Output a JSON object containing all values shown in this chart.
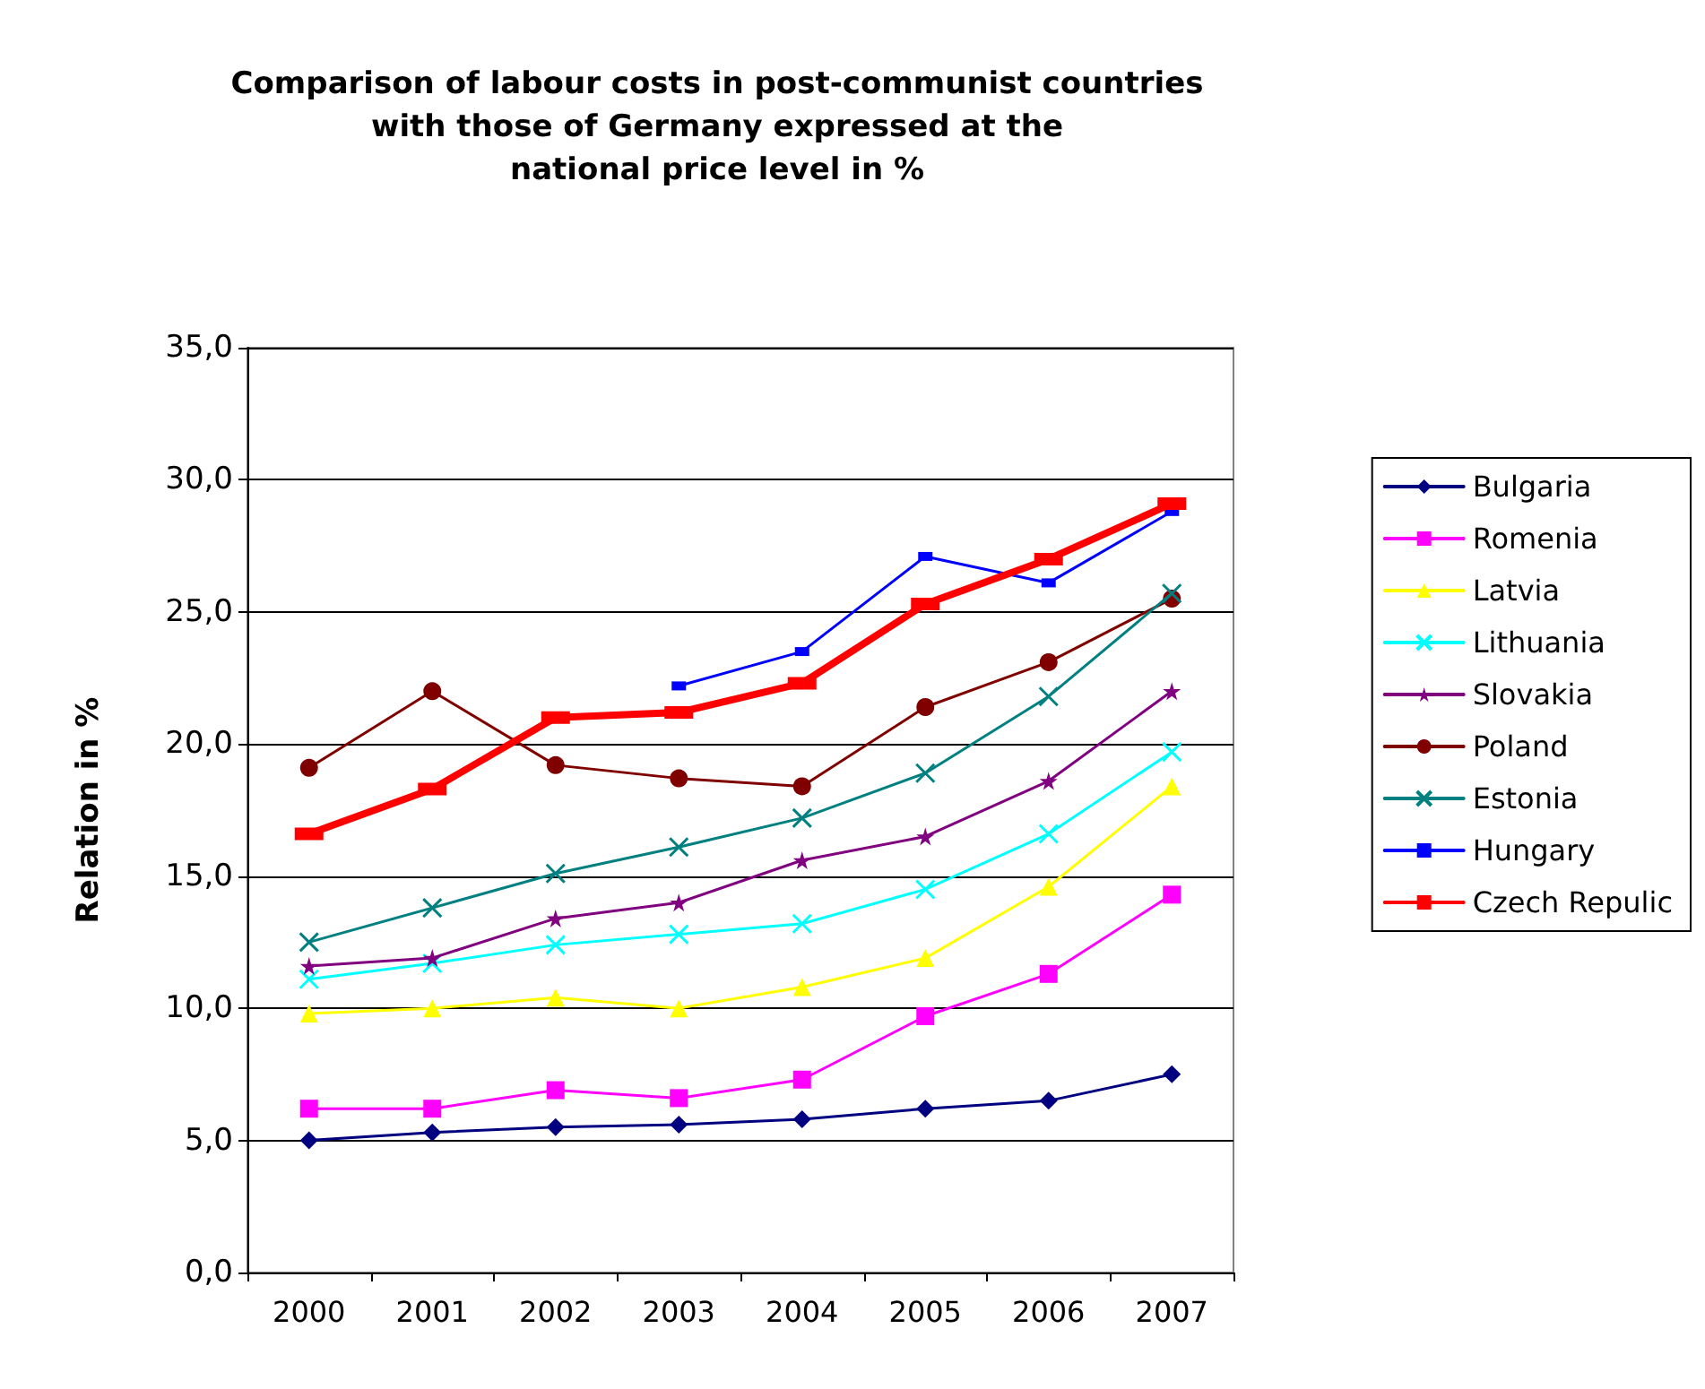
{
  "chart_data": {
    "type": "line",
    "title": "Comparison of labour costs in post-communist countries\nwith those of Germany expressed at the\nnational price level in %",
    "ylabel": "Relation in %",
    "categories": [
      "2000",
      "2001",
      "2002",
      "2003",
      "2004",
      "2005",
      "2006",
      "2007"
    ],
    "series": [
      {
        "name": "Bulgaria",
        "color": "#000080",
        "marker": "diamond",
        "values": [
          5.0,
          5.3,
          5.5,
          5.6,
          5.8,
          6.2,
          6.5,
          7.5
        ]
      },
      {
        "name": "Romenia",
        "color": "#ff00ff",
        "marker": "square",
        "values": [
          6.2,
          6.2,
          6.9,
          6.6,
          7.3,
          9.7,
          11.3,
          14.3
        ]
      },
      {
        "name": "Latvia",
        "color": "#ffff00",
        "marker": "triangle",
        "values": [
          9.8,
          10.0,
          10.4,
          10.0,
          10.8,
          11.9,
          14.6,
          18.4
        ]
      },
      {
        "name": "Lithuania",
        "color": "#00ffff",
        "marker": "cross",
        "values": [
          11.1,
          11.7,
          12.4,
          12.8,
          13.2,
          14.5,
          16.6,
          19.7
        ]
      },
      {
        "name": "Slovakia",
        "color": "#800080",
        "marker": "star",
        "values": [
          11.6,
          11.9,
          13.4,
          14.0,
          15.6,
          16.5,
          18.6,
          22.0
        ]
      },
      {
        "name": "Poland",
        "color": "#800000",
        "marker": "circle",
        "values": [
          19.1,
          22.0,
          19.2,
          18.7,
          18.4,
          21.4,
          23.1,
          25.5
        ]
      },
      {
        "name": "Estonia",
        "color": "#008080",
        "marker": "cross",
        "values": [
          12.5,
          13.8,
          15.1,
          16.1,
          17.2,
          18.9,
          21.8,
          25.7
        ]
      },
      {
        "name": "Hungary",
        "color": "#0000ff",
        "marker": "square",
        "values": [
          null,
          null,
          null,
          22.2,
          23.5,
          27.1,
          26.1,
          28.8
        ]
      },
      {
        "name": "Czech Repulic",
        "color": "#ff0000",
        "marker": "square",
        "values": [
          16.6,
          18.3,
          21.0,
          21.2,
          22.3,
          25.3,
          27.0,
          29.1
        ]
      }
    ],
    "ylim": [
      0,
      35
    ],
    "yticks": [
      {
        "value": 0,
        "label": "0,0"
      },
      {
        "value": 5,
        "label": "5,0"
      },
      {
        "value": 10,
        "label": "10,0"
      },
      {
        "value": 15,
        "label": "15,0"
      },
      {
        "value": 20,
        "label": "20,0"
      },
      {
        "value": 25,
        "label": "25,0"
      },
      {
        "value": 30,
        "label": "30,0"
      },
      {
        "value": 35,
        "label": "35,0"
      }
    ],
    "grid": "y",
    "legend": "right",
    "line_style": "solid"
  }
}
